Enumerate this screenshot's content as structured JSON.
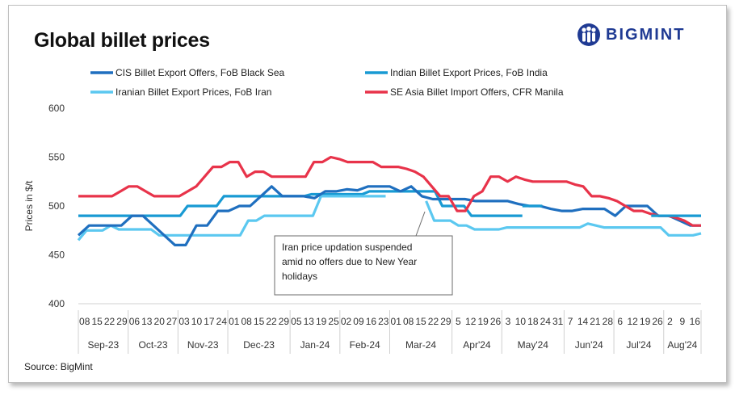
{
  "title": "Global billet prices",
  "logo": {
    "text": "BIGMINT",
    "color": "#1f3a93",
    "icon": "bigmint-people-icon"
  },
  "source": "Source: BigMint",
  "chart_data": {
    "type": "line",
    "ylabel": "Prices in $/t",
    "ylim": [
      400,
      600
    ],
    "yticks": [
      400,
      450,
      500,
      550,
      600
    ],
    "x_day_labels": [
      "08",
      "15",
      "22",
      "29",
      "06",
      "13",
      "20",
      "27",
      "03",
      "10",
      "17",
      "24",
      "01",
      "08",
      "15",
      "22",
      "29",
      "05",
      "13",
      "19",
      "25",
      "02",
      "09",
      "16",
      "23",
      "01",
      "08",
      "15",
      "22",
      "29",
      "5",
      "12",
      "19",
      "26",
      "3",
      "10",
      "18",
      "24",
      "31",
      "7",
      "14",
      "21",
      "28",
      "6",
      "12",
      "19",
      "26",
      "2",
      "9",
      "16"
    ],
    "month_groups": [
      {
        "label": "Sep-23",
        "start": 0,
        "end": 3
      },
      {
        "label": "Oct-23",
        "start": 4,
        "end": 7
      },
      {
        "label": "Nov-23",
        "start": 8,
        "end": 11
      },
      {
        "label": "Dec-23",
        "start": 12,
        "end": 16
      },
      {
        "label": "Jan-24",
        "start": 17,
        "end": 20
      },
      {
        "label": "Feb-24",
        "start": 21,
        "end": 24
      },
      {
        "label": "Mar-24",
        "start": 25,
        "end": 29
      },
      {
        "label": "Apr'24",
        "start": 30,
        "end": 33
      },
      {
        "label": "May'24",
        "start": 34,
        "end": 38
      },
      {
        "label": "Jun'24",
        "start": 39,
        "end": 42
      },
      {
        "label": "Jul'24",
        "start": 43,
        "end": 46
      },
      {
        "label": "Aug'24",
        "start": 47,
        "end": 49
      }
    ],
    "series": [
      {
        "name": "CIS Billet Export Offers, FoB Black Sea",
        "color": "#1f6fbf",
        "values": [
          470,
          480,
          480,
          480,
          480,
          490,
          490,
          480,
          470,
          460,
          460,
          480,
          480,
          495,
          495,
          500,
          500,
          510,
          520,
          510,
          510,
          510,
          508,
          515,
          515,
          517,
          516,
          520,
          520,
          520,
          515,
          520,
          510,
          507,
          507,
          507,
          507,
          505,
          505,
          505,
          505,
          502,
          500,
          500,
          497,
          495,
          495,
          497,
          497,
          497,
          490,
          500,
          500,
          500,
          490,
          490,
          485,
          480,
          480
        ]
      },
      {
        "name": "Indian Billet Export Prices, FoB India",
        "color": "#189ad3",
        "values": [
          490,
          490,
          490,
          490,
          490,
          490,
          490,
          490,
          490,
          490,
          490,
          490,
          490,
          490,
          490,
          500,
          500,
          500,
          500,
          500,
          510,
          510,
          510,
          510,
          510,
          510,
          510,
          510,
          510,
          510,
          510,
          510,
          512,
          512,
          512,
          512,
          512,
          512,
          512,
          512,
          515,
          515,
          515,
          515,
          515,
          515,
          515,
          515,
          515,
          515,
          500,
          500,
          500,
          500,
          490,
          490,
          490,
          490,
          490,
          490,
          490,
          490
        ]
      },
      {
        "name": "Iranian Billet Export Prices, FoB Iran",
        "color": "#5bc8f0",
        "values": [
          465,
          475,
          475,
          475,
          480,
          476,
          476,
          476,
          476,
          476,
          470,
          470,
          470,
          470,
          470,
          470,
          470,
          470,
          470,
          470,
          470,
          485,
          485,
          490,
          490,
          490,
          490,
          490,
          490,
          490,
          510,
          510,
          510,
          510,
          510,
          510,
          510,
          510,
          510,
          null,
          null,
          null,
          null,
          505,
          485,
          485,
          485,
          480,
          480,
          476,
          476,
          476,
          476,
          478,
          478,
          478,
          478,
          478,
          478,
          478,
          478,
          478,
          478,
          482,
          480,
          478,
          478,
          478,
          478,
          478,
          478,
          478,
          478,
          470,
          470,
          470,
          470,
          472
        ]
      },
      {
        "name": "SE Asia Billet Import Offers, CFR Manila",
        "color": "#e8334a",
        "values": [
          510,
          510,
          510,
          510,
          510,
          515,
          520,
          520,
          515,
          510,
          510,
          510,
          510,
          515,
          520,
          530,
          540,
          540,
          545,
          545,
          530,
          535,
          535,
          530,
          530,
          530,
          530,
          530,
          545,
          545,
          550,
          548,
          545,
          545,
          545,
          545,
          540,
          540,
          540,
          538,
          535,
          530,
          520,
          510,
          510,
          495,
          495,
          510,
          515,
          530,
          530,
          525,
          530,
          527,
          525,
          525,
          525,
          525,
          525,
          522,
          520,
          510,
          510,
          508,
          505,
          500,
          495,
          495,
          492,
          490,
          490,
          488,
          485,
          480,
          480
        ]
      }
    ],
    "annotation": "Iran price updation suspended amid no offers due to New Year holidays"
  }
}
